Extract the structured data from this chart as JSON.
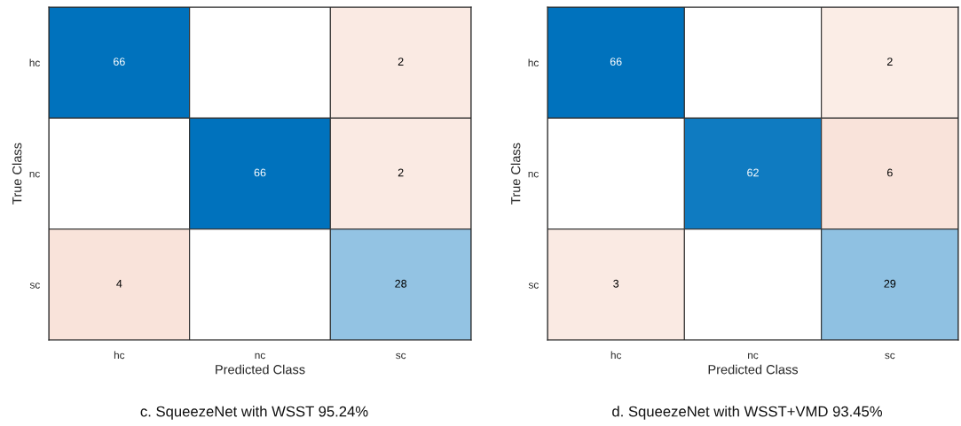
{
  "chart_data": [
    {
      "type": "heatmap",
      "categories": [
        "hc",
        "nc",
        "sc"
      ],
      "y_categories": [
        "hc",
        "nc",
        "sc"
      ],
      "cells": [
        [
          66,
          null,
          2
        ],
        [
          null,
          66,
          2
        ],
        [
          4,
          null,
          28
        ]
      ],
      "data_labels": true,
      "xlabel": "Predicted Class",
      "ylabel": "True Class",
      "annotations": [
        "c. SqueezeNet with WSST 95.24%"
      ]
    },
    {
      "type": "heatmap",
      "categories": [
        "hc",
        "nc",
        "sc"
      ],
      "y_categories": [
        "hc",
        "nc",
        "sc"
      ],
      "cells": [
        [
          66,
          null,
          2
        ],
        [
          null,
          62,
          6
        ],
        [
          3,
          null,
          29
        ]
      ],
      "data_labels": true,
      "xlabel": "Predicted Class",
      "ylabel": "True Class",
      "annotations": [
        "d. SqueezeNet with WSST+VMD 93.45%"
      ]
    }
  ]
}
